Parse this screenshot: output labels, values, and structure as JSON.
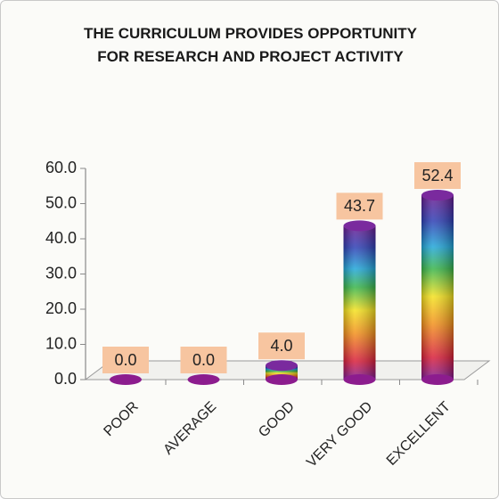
{
  "chart_data": {
    "type": "bar",
    "title": "THE CURRICULUM PROVIDES OPPORTUNITY FOR RESEARCH AND PROJECT ACTIVITY",
    "categories": [
      "POOR",
      "AVERAGE",
      "GOOD",
      "VERY GOOD",
      "EXCELLENT"
    ],
    "values": [
      0,
      0,
      4.0,
      43.7,
      52.4
    ],
    "value_labels": [
      "0.0",
      "0.0",
      "4.0",
      "43.7",
      "52.4"
    ],
    "ylim": [
      0,
      60
    ],
    "yticks": [
      {
        "value": 0,
        "label": "0.0"
      },
      {
        "value": 10,
        "label": "10.0"
      },
      {
        "value": 20,
        "label": "20.0"
      },
      {
        "value": 30,
        "label": "30.0"
      },
      {
        "value": 40,
        "label": "40.0"
      },
      {
        "value": 50,
        "label": "50.0"
      },
      {
        "value": 60,
        "label": "60.0"
      }
    ]
  }
}
